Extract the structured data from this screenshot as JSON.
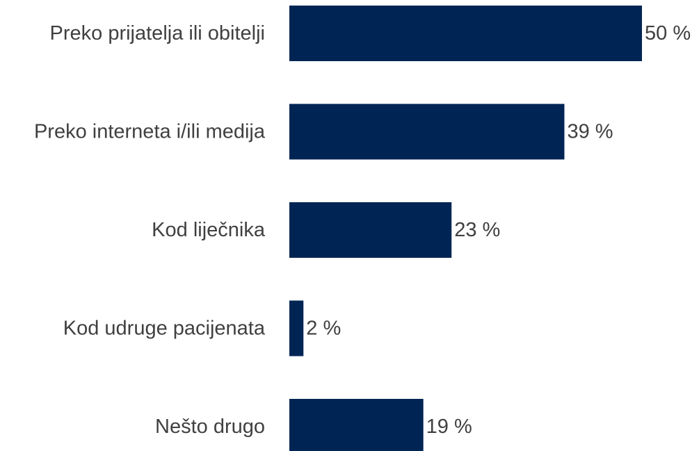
{
  "chart_data": {
    "type": "bar",
    "orientation": "horizontal",
    "categories": [
      "Preko prijatelja ili obitelji",
      "Preko interneta i/ili medija",
      "Kod liječnika",
      "Kod udruge pacijenata",
      "Nešto drugo"
    ],
    "values": [
      50,
      39,
      23,
      2,
      19
    ],
    "value_labels": [
      "50 %",
      "39 %",
      "23 %",
      "2 %",
      "19 %"
    ],
    "unit": "%",
    "xlim": [
      0,
      50
    ],
    "grid": false,
    "legend": "none",
    "bar_color": "#002554",
    "text_color": "#404040",
    "background_color": "#ffffff"
  }
}
